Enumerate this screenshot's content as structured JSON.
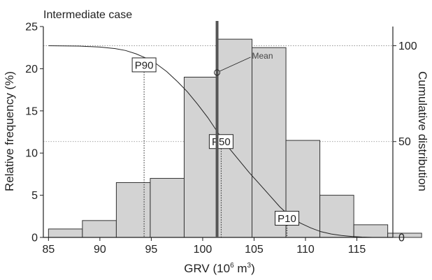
{
  "chart_data": {
    "type": "bar",
    "title": "Intermediate case",
    "xlabel_prefix": "GRV (10",
    "xlabel_exp1": "6",
    "xlabel_mid": " m",
    "xlabel_exp2": "3",
    "xlabel_suffix": ")",
    "ylabel": "Relative frequency (%)",
    "y2label": "Cumulative distribution",
    "xlim": [
      84.5,
      118.5
    ],
    "ylim": [
      0,
      25
    ],
    "y2lim": [
      0,
      110
    ],
    "x_ticks": [
      85,
      90,
      95,
      100,
      105,
      110,
      115
    ],
    "y_ticks": [
      0,
      5,
      10,
      15,
      20,
      25
    ],
    "y2_ticks": [
      0,
      50,
      100
    ],
    "bin_width": 3.3,
    "bins": [
      {
        "start": 85.0,
        "value": 1.0
      },
      {
        "start": 88.3,
        "value": 2.0
      },
      {
        "start": 91.6,
        "value": 6.5
      },
      {
        "start": 94.9,
        "value": 7.0
      },
      {
        "start": 98.2,
        "value": 19.0
      },
      {
        "start": 101.5,
        "value": 23.5
      },
      {
        "start": 104.8,
        "value": 22.5
      },
      {
        "start": 108.1,
        "value": 11.5
      },
      {
        "start": 111.4,
        "value": 5.0
      },
      {
        "start": 114.7,
        "value": 1.5
      },
      {
        "start": 118.0,
        "value": 0.5
      }
    ],
    "cumulative_curve": {
      "x": [
        85,
        88,
        90,
        91.5,
        92.5,
        93.5,
        94.5,
        95.5,
        96.5,
        97.5,
        98.5,
        99.5,
        100.5,
        101.5,
        102.5,
        103.5,
        104.5,
        105.5,
        106.5,
        107.5,
        108.5,
        109.5,
        110.5,
        111.5,
        112.5,
        113.5,
        114.5,
        115.5,
        116.5
      ],
      "y": [
        100,
        99.8,
        99.3,
        98.5,
        97.5,
        95.8,
        93.5,
        90.5,
        86.5,
        81.5,
        76,
        69.5,
        62.5,
        54.5,
        47,
        40.5,
        34,
        28,
        22,
        16,
        11,
        7.5,
        5,
        3,
        1.8,
        1,
        0.5,
        0.2,
        0
      ]
    },
    "mean": {
      "label": "Mean",
      "x": 101.4,
      "y2": 86
    },
    "percentiles": [
      {
        "label": "P90",
        "x": 94.3,
        "y2": 90
      },
      {
        "label": "P50",
        "x": 101.8,
        "y2": 50
      },
      {
        "label": "P10",
        "x": 108.2,
        "y2": 10
      }
    ],
    "grid": "horizontal dotted at y2 = 50 and 100",
    "bar_color": "#d3d3d3",
    "mean_line_color": "#555555"
  }
}
